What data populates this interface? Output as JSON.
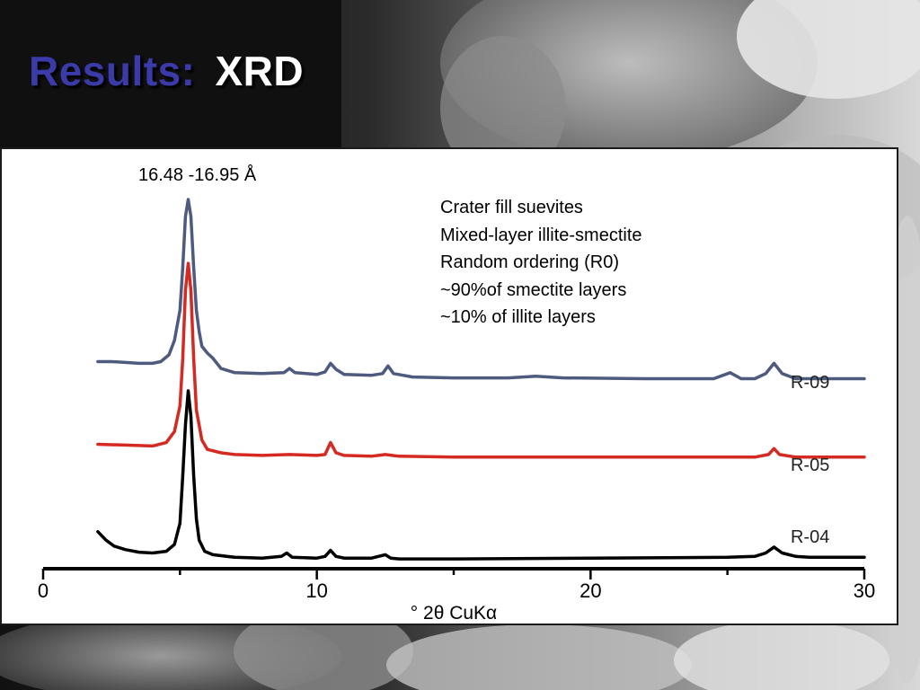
{
  "slide": {
    "title": "Results:",
    "subtitle": "XRD"
  },
  "colors": {
    "title_main": "#3a3aa8",
    "title_sub": "#ffffff",
    "R-09": "#4e5b7e",
    "R-05": "#d42a22",
    "R-04": "#000000"
  },
  "chart_data": {
    "type": "line",
    "xlabel": "° 2θ CuKα",
    "ylabel": "",
    "xlim": [
      0,
      30
    ],
    "x_ticks": [
      "0",
      "10",
      "20",
      "30"
    ],
    "grid": false,
    "legend": "series labels at right end of each trace",
    "peak_annotation": "16.48 -16.95 Å",
    "description": [
      "Crater fill suevites",
      "Mixed-layer illite-smectite",
      "Random ordering (R0)",
      "~90%of smectite layers",
      "~10% of illite layers"
    ],
    "series": [
      {
        "name": "R-09",
        "color": "#4e5b7e",
        "points": [
          [
            2.0,
            0.5
          ],
          [
            2.5,
            0.5
          ],
          [
            3.0,
            0.49
          ],
          [
            3.5,
            0.48
          ],
          [
            4.0,
            0.48
          ],
          [
            4.3,
            0.5
          ],
          [
            4.6,
            0.58
          ],
          [
            4.8,
            0.75
          ],
          [
            5.0,
            1.1
          ],
          [
            5.1,
            1.6
          ],
          [
            5.2,
            2.2
          ],
          [
            5.3,
            2.4
          ],
          [
            5.4,
            2.2
          ],
          [
            5.5,
            1.6
          ],
          [
            5.6,
            1.1
          ],
          [
            5.7,
            0.85
          ],
          [
            5.8,
            0.68
          ],
          [
            6.0,
            0.6
          ],
          [
            6.2,
            0.54
          ],
          [
            6.5,
            0.42
          ],
          [
            7.0,
            0.37
          ],
          [
            8.0,
            0.36
          ],
          [
            8.8,
            0.37
          ],
          [
            9.0,
            0.42
          ],
          [
            9.2,
            0.37
          ],
          [
            10.0,
            0.35
          ],
          [
            10.3,
            0.38
          ],
          [
            10.5,
            0.48
          ],
          [
            10.7,
            0.41
          ],
          [
            11.0,
            0.35
          ],
          [
            12.0,
            0.34
          ],
          [
            12.4,
            0.36
          ],
          [
            12.6,
            0.45
          ],
          [
            12.8,
            0.36
          ],
          [
            13.5,
            0.32
          ],
          [
            15.0,
            0.31
          ],
          [
            17.0,
            0.31
          ],
          [
            18.0,
            0.33
          ],
          [
            19.0,
            0.31
          ],
          [
            22.0,
            0.3
          ],
          [
            24.5,
            0.3
          ],
          [
            25.1,
            0.37
          ],
          [
            25.5,
            0.3
          ],
          [
            26.0,
            0.3
          ],
          [
            26.4,
            0.36
          ],
          [
            26.7,
            0.48
          ],
          [
            27.0,
            0.36
          ],
          [
            27.5,
            0.3
          ],
          [
            29.0,
            0.3
          ],
          [
            30.0,
            0.3
          ]
        ]
      },
      {
        "name": "R-05",
        "color": "#d42a22",
        "points": [
          [
            2.0,
            0.5
          ],
          [
            3.0,
            0.49
          ],
          [
            4.0,
            0.48
          ],
          [
            4.5,
            0.52
          ],
          [
            4.8,
            0.65
          ],
          [
            5.0,
            0.95
          ],
          [
            5.1,
            1.5
          ],
          [
            5.2,
            2.3
          ],
          [
            5.3,
            2.62
          ],
          [
            5.4,
            2.3
          ],
          [
            5.5,
            1.5
          ],
          [
            5.6,
            0.9
          ],
          [
            5.8,
            0.55
          ],
          [
            6.0,
            0.44
          ],
          [
            6.5,
            0.4
          ],
          [
            7.0,
            0.38
          ],
          [
            8.0,
            0.37
          ],
          [
            9.0,
            0.38
          ],
          [
            10.0,
            0.37
          ],
          [
            10.3,
            0.38
          ],
          [
            10.5,
            0.52
          ],
          [
            10.7,
            0.4
          ],
          [
            11.0,
            0.37
          ],
          [
            12.0,
            0.36
          ],
          [
            12.5,
            0.38
          ],
          [
            13.0,
            0.36
          ],
          [
            15.0,
            0.35
          ],
          [
            20.0,
            0.35
          ],
          [
            24.0,
            0.35
          ],
          [
            26.0,
            0.35
          ],
          [
            26.5,
            0.38
          ],
          [
            26.7,
            0.45
          ],
          [
            26.9,
            0.38
          ],
          [
            27.5,
            0.35
          ],
          [
            30.0,
            0.35
          ]
        ]
      },
      {
        "name": "R-04",
        "color": "#000000",
        "points": [
          [
            2.0,
            0.35
          ],
          [
            2.3,
            0.25
          ],
          [
            2.6,
            0.18
          ],
          [
            3.0,
            0.14
          ],
          [
            3.5,
            0.11
          ],
          [
            4.0,
            0.1
          ],
          [
            4.5,
            0.12
          ],
          [
            4.8,
            0.2
          ],
          [
            5.0,
            0.45
          ],
          [
            5.1,
            1.0
          ],
          [
            5.2,
            1.6
          ],
          [
            5.3,
            2.0
          ],
          [
            5.4,
            1.7
          ],
          [
            5.5,
            1.0
          ],
          [
            5.6,
            0.5
          ],
          [
            5.7,
            0.25
          ],
          [
            5.9,
            0.12
          ],
          [
            6.2,
            0.08
          ],
          [
            7.0,
            0.05
          ],
          [
            8.0,
            0.04
          ],
          [
            8.7,
            0.06
          ],
          [
            8.9,
            0.1
          ],
          [
            9.1,
            0.05
          ],
          [
            10.0,
            0.04
          ],
          [
            10.3,
            0.06
          ],
          [
            10.5,
            0.13
          ],
          [
            10.7,
            0.06
          ],
          [
            11.0,
            0.04
          ],
          [
            12.0,
            0.04
          ],
          [
            12.5,
            0.08
          ],
          [
            12.7,
            0.04
          ],
          [
            13.0,
            0.03
          ],
          [
            15.0,
            0.03
          ],
          [
            20.0,
            0.04
          ],
          [
            25.0,
            0.05
          ],
          [
            26.0,
            0.06
          ],
          [
            26.4,
            0.1
          ],
          [
            26.7,
            0.17
          ],
          [
            27.0,
            0.1
          ],
          [
            27.5,
            0.06
          ],
          [
            28.0,
            0.05
          ],
          [
            30.0,
            0.05
          ]
        ]
      }
    ]
  }
}
